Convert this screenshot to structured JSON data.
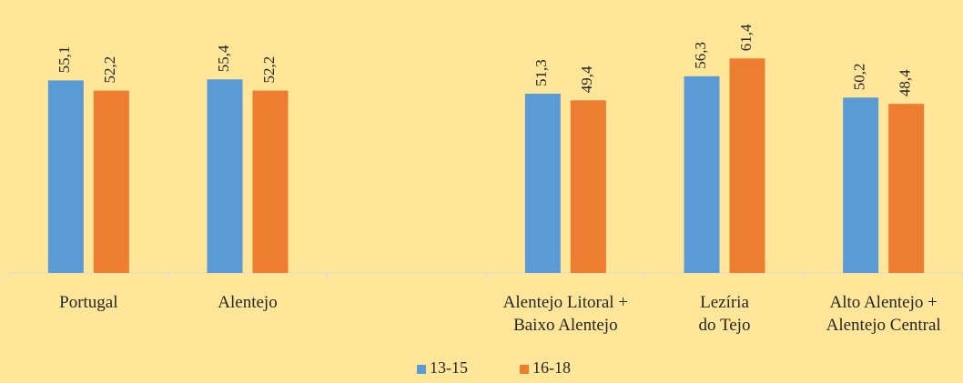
{
  "chart_data": {
    "type": "bar",
    "categories": [
      [
        "Portugal"
      ],
      [
        "Alentejo"
      ],
      [
        ""
      ],
      [
        "Alentejo Litoral +",
        "Baixo Alentejo"
      ],
      [
        "Lezíria",
        "do Tejo"
      ],
      [
        "Alto Alentejo +",
        "Alentejo Central"
      ]
    ],
    "series": [
      {
        "name": "13-15",
        "color": "#5B9BD5",
        "values": [
          55.1,
          55.4,
          null,
          51.3,
          56.3,
          50.2
        ],
        "labels": [
          "55,1",
          "55,4",
          "",
          "51,3",
          "56,3",
          "50,2"
        ]
      },
      {
        "name": "16-18",
        "color": "#ED7D31",
        "values": [
          52.2,
          52.2,
          null,
          49.4,
          61.4,
          48.4
        ],
        "labels": [
          "52,2",
          "52,2",
          "",
          "49,4",
          "61,4",
          "48,4"
        ]
      }
    ],
    "ylim": [
      0,
      70
    ],
    "grid": false,
    "legend_position": "bottom",
    "background": "#FFE699",
    "axis_color": "#D9D9D9"
  }
}
